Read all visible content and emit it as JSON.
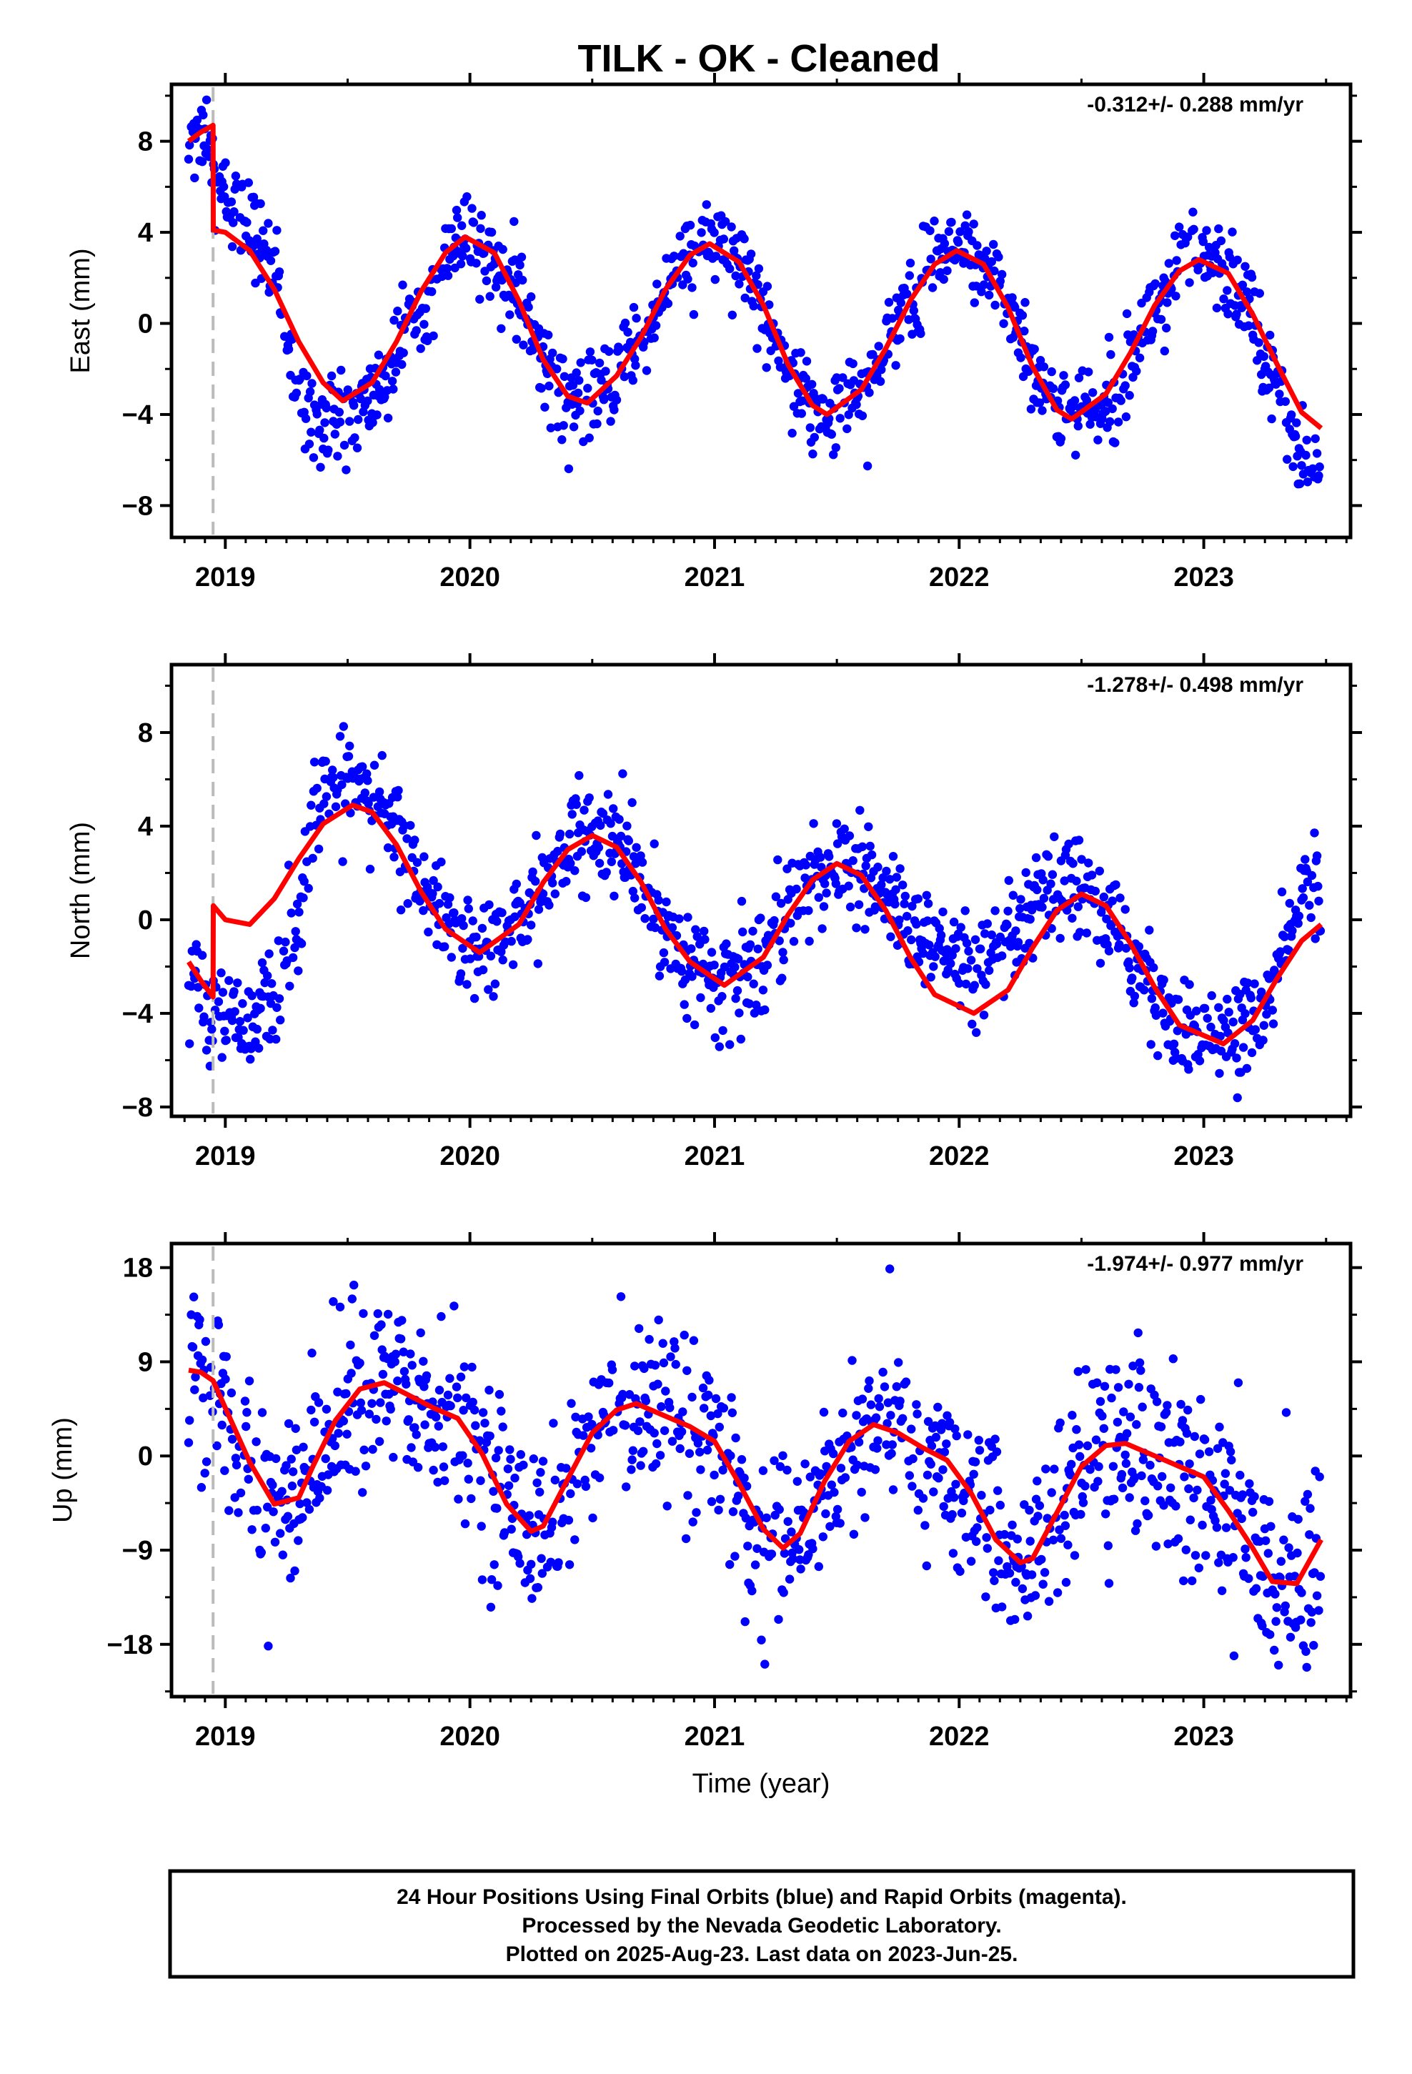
{
  "title": "TILK  - OK - Cleaned",
  "footer": {
    "lines": [
      "24 Hour Positions Using Final Orbits (blue) and Rapid Orbits (magenta).",
      "Processed by the Nevada Geodetic Laboratory.",
      "Plotted on 2025-Aug-23. Last data on 2023-Jun-25."
    ]
  },
  "colors": {
    "points": "#0000ff",
    "model": "#ff0000",
    "step_line": "#bbbbbb",
    "frame": "#000000"
  },
  "chart_data": [
    {
      "type": "scatter",
      "component": "east",
      "ylabel": "East (mm)",
      "xlabel": "",
      "xlim": [
        2018.78,
        2023.6
      ],
      "ylim": [
        -9.4,
        10.5
      ],
      "xticks": [
        "2019",
        "2020",
        "2021",
        "2022",
        "2023"
      ],
      "yticks": [
        8,
        4,
        0,
        -4,
        -8
      ],
      "rate_label": "-0.312+/- 0.288 mm/yr",
      "step_epoch": 2018.95,
      "grid": false,
      "data_start": 2018.85,
      "data_end": 2023.48,
      "series": [
        {
          "name": "",
          "style": "red-line",
          "x": [
            2018.85,
            2018.9,
            2018.95,
            2018.951,
            2019.0,
            2019.1,
            2019.2,
            2019.3,
            2019.4,
            2019.48,
            2019.6,
            2019.7,
            2019.8,
            2019.9,
            2019.98,
            2020.1,
            2020.2,
            2020.3,
            2020.4,
            2020.48,
            2020.6,
            2020.7,
            2020.8,
            2020.9,
            2020.98,
            2021.1,
            2021.2,
            2021.3,
            2021.4,
            2021.46,
            2021.6,
            2021.7,
            2021.8,
            2021.9,
            2021.99,
            2022.1,
            2022.2,
            2022.3,
            2022.4,
            2022.46,
            2022.6,
            2022.7,
            2022.8,
            2022.9,
            2022.98,
            2023.1,
            2023.2,
            2023.3,
            2023.4,
            2023.48
          ],
          "y": [
            8.0,
            8.4,
            8.7,
            4.1,
            4.0,
            3.2,
            1.5,
            -0.8,
            -2.6,
            -3.4,
            -2.6,
            -0.8,
            1.4,
            3.1,
            3.8,
            3.1,
            1.0,
            -1.6,
            -3.2,
            -3.5,
            -2.3,
            -0.6,
            1.5,
            3.0,
            3.5,
            2.7,
            0.8,
            -1.8,
            -3.6,
            -4.0,
            -2.9,
            -1.1,
            1.0,
            2.6,
            3.2,
            2.6,
            0.7,
            -1.9,
            -3.8,
            -4.2,
            -3.1,
            -1.3,
            0.8,
            2.3,
            2.8,
            2.2,
            0.4,
            -1.8,
            -3.9,
            -4.6
          ]
        }
      ]
    },
    {
      "type": "scatter",
      "component": "north",
      "ylabel": "North (mm)",
      "xlabel": "",
      "xlim": [
        2018.78,
        2023.6
      ],
      "ylim": [
        -8.4,
        10.9
      ],
      "xticks": [
        "2019",
        "2020",
        "2021",
        "2022",
        "2023"
      ],
      "yticks": [
        8,
        4,
        0,
        -4,
        -8
      ],
      "rate_label": "-1.278+/- 0.498 mm/yr",
      "step_epoch": 2018.95,
      "grid": false,
      "data_start": 2018.85,
      "data_end": 2023.48,
      "series": [
        {
          "name": "",
          "style": "red-line",
          "x": [
            2018.85,
            2018.9,
            2018.95,
            2018.951,
            2019.0,
            2019.1,
            2019.2,
            2019.3,
            2019.4,
            2019.52,
            2019.6,
            2019.7,
            2019.8,
            2019.9,
            2020.04,
            2020.2,
            2020.3,
            2020.4,
            2020.5,
            2020.6,
            2020.7,
            2020.8,
            2020.9,
            2021.04,
            2021.2,
            2021.3,
            2021.4,
            2021.5,
            2021.6,
            2021.7,
            2021.8,
            2021.9,
            2022.06,
            2022.2,
            2022.3,
            2022.4,
            2022.5,
            2022.6,
            2022.7,
            2022.8,
            2022.9,
            2023.08,
            2023.2,
            2023.3,
            2023.4,
            2023.48
          ],
          "y": [
            -1.8,
            -2.6,
            -3.3,
            0.6,
            0.0,
            -0.2,
            0.9,
            2.6,
            4.1,
            4.9,
            4.6,
            3.2,
            1.2,
            -0.4,
            -1.4,
            -0.2,
            1.6,
            3.0,
            3.6,
            3.1,
            1.6,
            -0.4,
            -1.8,
            -2.8,
            -1.6,
            0.2,
            1.7,
            2.4,
            1.9,
            0.4,
            -1.6,
            -3.2,
            -4.0,
            -3.0,
            -1.2,
            0.4,
            1.1,
            0.6,
            -1.0,
            -2.9,
            -4.5,
            -5.3,
            -4.3,
            -2.5,
            -0.9,
            -0.2
          ]
        }
      ]
    },
    {
      "type": "scatter",
      "component": "up",
      "ylabel": "Up (mm)",
      "xlabel": "Time (year)",
      "xlim": [
        2018.78,
        2023.6
      ],
      "ylim": [
        -23.0,
        20.3
      ],
      "xticks": [
        "2019",
        "2020",
        "2021",
        "2022",
        "2023"
      ],
      "yticks": [
        18,
        9,
        0,
        -9,
        -18
      ],
      "rate_label": "-1.974+/- 0.977 mm/yr",
      "step_epoch": 2018.95,
      "grid": false,
      "data_start": 2018.85,
      "data_end": 2023.48,
      "series": [
        {
          "name": "",
          "style": "red-line",
          "x": [
            2018.85,
            2018.9,
            2018.95,
            2019.0,
            2019.1,
            2019.2,
            2019.3,
            2019.36,
            2019.45,
            2019.55,
            2019.65,
            2019.75,
            2019.85,
            2019.95,
            2020.05,
            2020.15,
            2020.25,
            2020.3,
            2020.4,
            2020.5,
            2020.6,
            2020.68,
            2020.8,
            2020.9,
            2021.0,
            2021.1,
            2021.2,
            2021.28,
            2021.35,
            2021.45,
            2021.55,
            2021.65,
            2021.75,
            2021.85,
            2021.95,
            2022.05,
            2022.15,
            2022.25,
            2022.3,
            2022.4,
            2022.5,
            2022.6,
            2022.68,
            2022.8,
            2022.9,
            2023.0,
            2023.1,
            2023.2,
            2023.28,
            2023.38,
            2023.48
          ],
          "y": [
            8.2,
            8.0,
            7.2,
            4.6,
            -0.6,
            -4.6,
            -4.0,
            -0.9,
            3.4,
            6.4,
            7.0,
            5.8,
            4.6,
            3.6,
            0.2,
            -4.6,
            -7.2,
            -6.7,
            -2.2,
            2.2,
            4.4,
            5.0,
            3.8,
            2.8,
            1.4,
            -2.6,
            -7.0,
            -8.8,
            -7.4,
            -2.4,
            1.4,
            3.0,
            2.2,
            0.8,
            -0.4,
            -3.6,
            -8.0,
            -10.2,
            -9.8,
            -5.4,
            -1.0,
            1.0,
            1.2,
            0.0,
            -1.0,
            -2.0,
            -5.2,
            -8.8,
            -12.0,
            -12.2,
            -8.0
          ]
        }
      ]
    }
  ]
}
